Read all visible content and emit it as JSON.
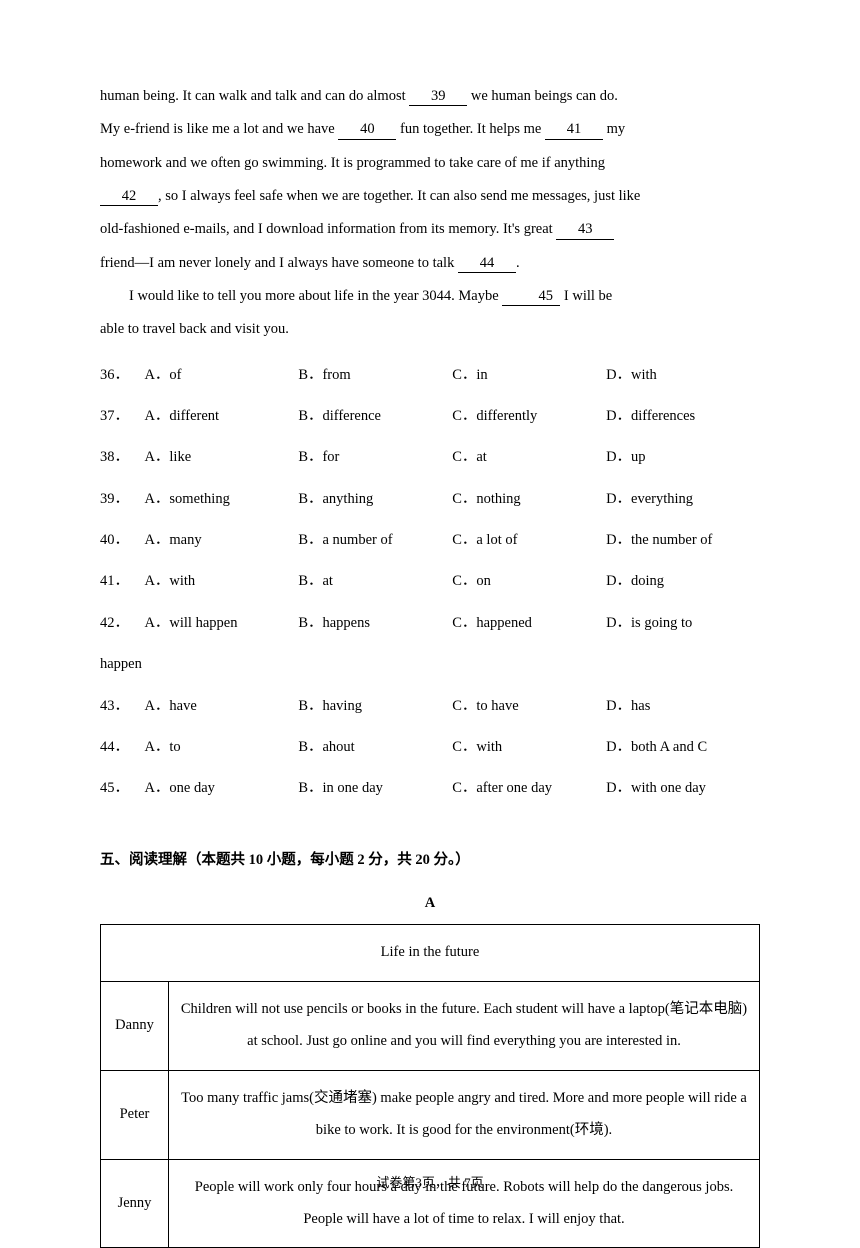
{
  "passage": {
    "l1a": "human being. It can walk and talk and can do almost ",
    "blank39": "    39    ",
    "l1b": " we human beings can do.",
    "l2a": "My e-friend is like me a lot and we have ",
    "blank40": "    40    ",
    "l2b": " fun together. It helps me ",
    "blank41": "    41    ",
    "l2c": " my",
    "l3a": "homework and we often go swimming. It is programmed to take care of me if anything",
    "l4a": "",
    "blank42": "42    ",
    "l4b": ", so I always feel safe when we are together. It can also send me messages, just like",
    "l5a": "old-fashioned e-mails, and I download information from its memory. It's great ",
    "blank43": "       43",
    "l6a": "friend—I am never lonely and I always have someone to talk ",
    "blank44": "    44    ",
    "l6b": ".",
    "p2a": "I would like to tell you more about life in the year 3044. Maybe ",
    "blank45": "    45    ",
    "p2b": " I will be",
    "p2c": "able to travel back and visit you."
  },
  "options": [
    {
      "n": "36．",
      "a": "A．of",
      "b": "B．from",
      "c": "C．in",
      "d": "D．with"
    },
    {
      "n": "37．",
      "a": "A．different",
      "b": "B．difference",
      "c": "C．differently",
      "d": "D．differences"
    },
    {
      "n": "38．",
      "a": "A．like",
      "b": "B．for",
      "c": "C．at",
      "d": "D．up"
    },
    {
      "n": "39．",
      "a": "A．something",
      "b": "B．anything",
      "c": "C．nothing",
      "d": "D．everything"
    },
    {
      "n": "40．",
      "a": "A．many",
      "b": "B．a number of",
      "c": "C．a lot of",
      "d": "D．the number of"
    },
    {
      "n": "41．",
      "a": "A．with",
      "b": "B．at",
      "c": "C．on",
      "d": "D．doing"
    },
    {
      "n": "42．",
      "a": "A．will happen",
      "b": "B．happens",
      "c": "C．happened",
      "d": "D．is going to"
    },
    {
      "n": "happen",
      "a": "",
      "b": "",
      "c": "",
      "d": ""
    },
    {
      "n": "43．",
      "a": "A．have",
      "b": "B．having",
      "c": "C．to have",
      "d": "D．has"
    },
    {
      "n": "44．",
      "a": "A．to",
      "b": "B．ahout",
      "c": "C．with",
      "d": "D．both A and C"
    },
    {
      "n": "45．",
      "a": "A．one day",
      "b": "B．in one day",
      "c": "C．after one day",
      "d": "D．with one day"
    }
  ],
  "section5": {
    "title": "五、阅读理解（本题共 10 小题，每小题 2 分，共 20 分。）",
    "label": "A",
    "tableTitle": "Life in the future",
    "rows": [
      {
        "name": "Danny",
        "text": "Children will not use pencils or books in the future.\nEach student will have a laptop(笔记本电脑) at school. Just go online and you will find everything you are interested in."
      },
      {
        "name": "Peter",
        "text": "Too many traffic jams(交通堵塞) make people angry and tired. More and more people will ride a bike to work. It is good for the environment(环境)."
      },
      {
        "name": "Jenny",
        "text": "People will work only four hours a day in the future. Robots will help do the dangerous jobs. People will have a lot of time to relax. I will enjoy that."
      }
    ]
  },
  "footer": "试卷第3页，共 7页"
}
